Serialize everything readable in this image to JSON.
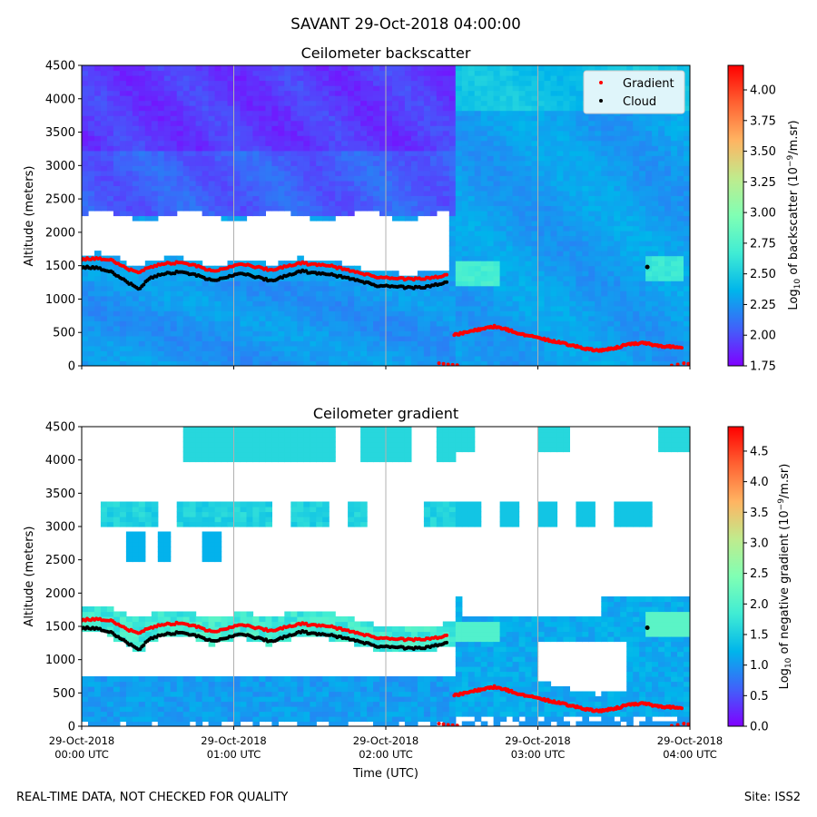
{
  "figure": {
    "suptitle": "SAVANT 29-Oct-2018 04:00:00",
    "footer_left": "REAL-TIME DATA, NOT CHECKED FOR QUALITY",
    "footer_right": "Site: ISS2"
  },
  "colors": {
    "rainbow": [
      "#8000ff",
      "#4062fa",
      "#00b5eb",
      "#40ecd4",
      "#80ffb4",
      "#c0eb8d",
      "#ffb462",
      "#ff6232",
      "#ff0000"
    ],
    "gradient_marker": "#ff0000",
    "cloud_marker": "#000000",
    "legend_bg": "#dff5fa",
    "grid": "#b0b0b0"
  },
  "chart_data": [
    {
      "type": "heatmap",
      "title": "Ceilometer backscatter",
      "ylabel": "Altitude (meters)",
      "ylim": [
        0,
        4500
      ],
      "yticks": [
        0,
        500,
        1000,
        1500,
        2000,
        2500,
        3000,
        3500,
        4000,
        4500
      ],
      "xlim_hours_utc": [
        0,
        4
      ],
      "xticks_hours_utc": [
        0,
        1,
        2,
        3,
        4
      ],
      "grid": "vertical at each hour",
      "colorbar": {
        "label_prefix": "Log",
        "label_sub": "10",
        "label_mid": " of backscatter (10",
        "label_sup": "−9",
        "label_suffix": "/m.sr)",
        "vmin": 1.75,
        "vmax": 4.2,
        "ticks": [
          "1.75",
          "2.00",
          "2.25",
          "2.50",
          "2.75",
          "3.00",
          "3.25",
          "3.50",
          "3.75",
          "4.00"
        ]
      },
      "legend": {
        "position": "top-right",
        "entries": [
          "Gradient",
          "Cloud"
        ]
      }
    },
    {
      "type": "heatmap",
      "title": "Ceilometer gradient",
      "ylabel": "Altitude (meters)",
      "xlabel": "Time (UTC)",
      "ylim": [
        0,
        4500
      ],
      "yticks": [
        0,
        500,
        1000,
        1500,
        2000,
        2500,
        3000,
        3500,
        4000,
        4500
      ],
      "xlim_hours_utc": [
        0,
        4
      ],
      "xticks_hours_utc": [
        0,
        1,
        2,
        3,
        4
      ],
      "xtick_labels": [
        [
          "29-Oct-2018",
          "00:00 UTC"
        ],
        [
          "29-Oct-2018",
          "01:00 UTC"
        ],
        [
          "29-Oct-2018",
          "02:00 UTC"
        ],
        [
          "29-Oct-2018",
          "03:00 UTC"
        ],
        [
          "29-Oct-2018",
          "04:00 UTC"
        ]
      ],
      "grid": "vertical at each hour",
      "colorbar": {
        "label_prefix": "Log",
        "label_sub": "10",
        "label_mid": " of negative gradient (10",
        "label_sup": "−9",
        "label_suffix": "/m.sr)",
        "vmin": 0.0,
        "vmax": 4.9,
        "ticks": [
          "0.0",
          "0.5",
          "1.0",
          "1.5",
          "2.0",
          "2.5",
          "3.0",
          "3.5",
          "4.0",
          "4.5"
        ]
      }
    }
  ],
  "series": {
    "cloud_base_m": {
      "hours": [
        0.0,
        0.1,
        0.2,
        0.3,
        0.38,
        0.45,
        0.55,
        0.65,
        0.75,
        0.85,
        0.95,
        1.05,
        1.15,
        1.25,
        1.35,
        1.45,
        1.55,
        1.65,
        1.75,
        1.85,
        1.95,
        2.05,
        2.15,
        2.25,
        2.35,
        2.4
      ],
      "values": [
        1480,
        1470,
        1400,
        1250,
        1150,
        1320,
        1380,
        1410,
        1360,
        1280,
        1320,
        1380,
        1330,
        1270,
        1360,
        1420,
        1380,
        1360,
        1310,
        1260,
        1200,
        1190,
        1170,
        1180,
        1220,
        1250
      ]
    },
    "gradient_top_m": {
      "hours": [
        0.0,
        0.1,
        0.2,
        0.3,
        0.38,
        0.45,
        0.55,
        0.65,
        0.75,
        0.85,
        0.95,
        1.05,
        1.15,
        1.25,
        1.35,
        1.45,
        1.55,
        1.65,
        1.75,
        1.85,
        1.95,
        2.05,
        2.15,
        2.25,
        2.35,
        2.4
      ],
      "values": [
        1600,
        1610,
        1580,
        1450,
        1400,
        1480,
        1530,
        1550,
        1500,
        1420,
        1460,
        1520,
        1480,
        1430,
        1500,
        1540,
        1510,
        1490,
        1430,
        1380,
        1330,
        1310,
        1300,
        1310,
        1330,
        1360
      ]
    },
    "gradient_low_m": {
      "hours": [
        2.45,
        2.55,
        2.65,
        2.72,
        2.8,
        2.9,
        3.0,
        3.1,
        3.2,
        3.3,
        3.4,
        3.5,
        3.6,
        3.7,
        3.8,
        3.9,
        3.95
      ],
      "values": [
        460,
        520,
        560,
        590,
        540,
        470,
        420,
        370,
        320,
        260,
        230,
        260,
        330,
        340,
        300,
        280,
        270
      ]
    },
    "gradient_surface_m": {
      "hours": [
        2.35,
        2.38,
        2.41,
        2.44,
        2.47,
        3.88,
        3.92,
        3.96,
        3.99
      ],
      "values": [
        40,
        30,
        20,
        15,
        10,
        5,
        20,
        40,
        30
      ]
    },
    "isolated_cloud_m": {
      "hours": [
        3.72
      ],
      "values": [
        1480
      ]
    }
  }
}
